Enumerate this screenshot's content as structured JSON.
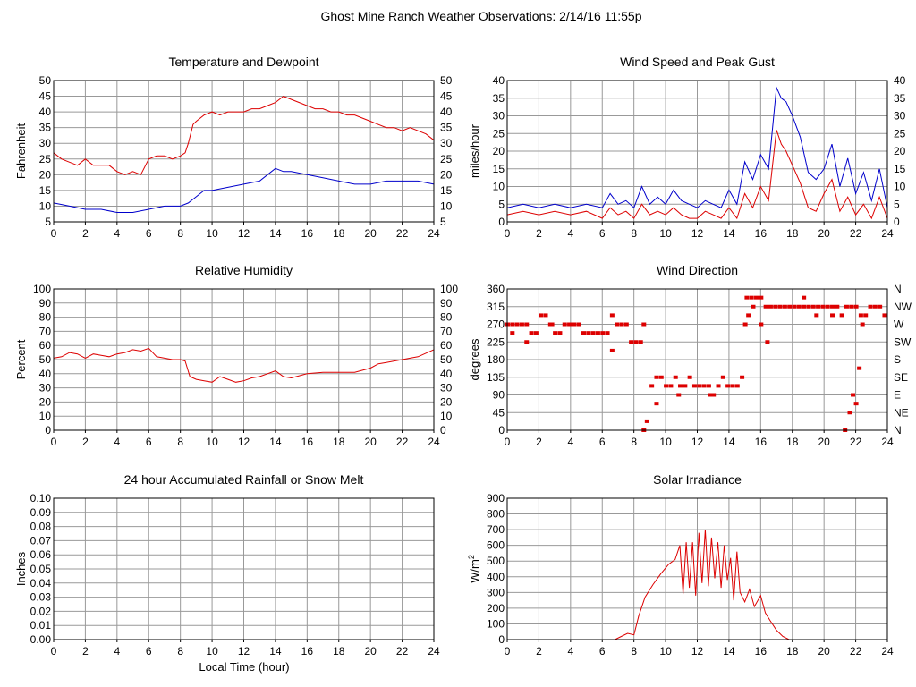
{
  "page": {
    "title": "Ghost Mine Ranch Weather Observations: 2/14/16 11:55p",
    "xlabel": "Local Time (hour)"
  },
  "colors": {
    "primary": "#dd0000",
    "secondary": "#0000cc",
    "grid": "#999999",
    "axis": "#000000"
  },
  "chart_data": [
    {
      "id": "temp",
      "type": "line",
      "title": "Temperature and Dewpoint",
      "ylabel": "Fahrenheit",
      "xlim": [
        0,
        24
      ],
      "ylim": [
        5,
        50
      ],
      "yticks": [
        5,
        10,
        15,
        20,
        25,
        30,
        35,
        40,
        45,
        50
      ],
      "xticks": [
        0,
        2,
        4,
        6,
        8,
        10,
        12,
        14,
        16,
        18,
        20,
        22,
        24
      ],
      "right_ticks": [
        "5",
        "10",
        "15",
        "20",
        "25",
        "30",
        "35",
        "40",
        "45",
        "50"
      ],
      "grid": true,
      "series": [
        {
          "color": "#dd0000",
          "x": [
            0,
            0.5,
            1,
            1.5,
            2,
            2.5,
            3,
            3.5,
            4,
            4.5,
            5,
            5.5,
            6,
            6.5,
            7,
            7.5,
            8,
            8.3,
            8.5,
            8.8,
            9,
            9.5,
            10,
            10.5,
            11,
            11.5,
            12,
            12.5,
            13,
            13.5,
            14,
            14.5,
            15,
            15.5,
            16,
            16.5,
            17,
            17.5,
            18,
            18.5,
            19,
            19.5,
            20,
            20.5,
            21,
            21.5,
            22,
            22.5,
            23,
            23.5,
            24
          ],
          "y": [
            27,
            25,
            24,
            23,
            25,
            23,
            23,
            23,
            21,
            20,
            21,
            20,
            25,
            26,
            26,
            25,
            26,
            27,
            30,
            36,
            37,
            39,
            40,
            39,
            40,
            40,
            40,
            41,
            41,
            42,
            43,
            45,
            44,
            43,
            42,
            41,
            41,
            40,
            40,
            39,
            39,
            38,
            37,
            36,
            35,
            35,
            34,
            35,
            34,
            33,
            31
          ]
        },
        {
          "color": "#0000cc",
          "x": [
            0,
            1,
            2,
            3,
            4,
            5,
            6,
            7,
            8,
            8.5,
            9,
            9.5,
            10,
            11,
            12,
            13,
            13.5,
            14,
            14.5,
            15,
            16,
            17,
            18,
            19,
            20,
            21,
            22,
            23,
            24
          ],
          "y": [
            11,
            10,
            9,
            9,
            8,
            8,
            9,
            10,
            10,
            11,
            13,
            15,
            15,
            16,
            17,
            18,
            20,
            22,
            21,
            21,
            20,
            19,
            18,
            17,
            17,
            18,
            18,
            18,
            17
          ]
        }
      ]
    },
    {
      "id": "wind",
      "type": "line",
      "title": "Wind Speed and Peak Gust",
      "ylabel": "miles/hour",
      "xlim": [
        0,
        24
      ],
      "ylim": [
        0,
        40
      ],
      "yticks": [
        0,
        5,
        10,
        15,
        20,
        25,
        30,
        35,
        40
      ],
      "xticks": [
        0,
        2,
        4,
        6,
        8,
        10,
        12,
        14,
        16,
        18,
        20,
        22,
        24
      ],
      "right_ticks": [
        "0",
        "5",
        "10",
        "15",
        "20",
        "25",
        "30",
        "35",
        "40"
      ],
      "grid": true,
      "series": [
        {
          "color": "#0000cc",
          "x": [
            0,
            1,
            2,
            3,
            4,
            5,
            6,
            6.5,
            7,
            7.5,
            8,
            8.5,
            9,
            9.5,
            10,
            10.5,
            11,
            11.5,
            12,
            12.5,
            13,
            13.5,
            14,
            14.5,
            15,
            15.5,
            16,
            16.5,
            17,
            17.3,
            17.6,
            18,
            18.5,
            19,
            19.5,
            20,
            20.5,
            21,
            21.5,
            22,
            22.5,
            23,
            23.5,
            24
          ],
          "y": [
            4,
            5,
            4,
            5,
            4,
            5,
            4,
            8,
            5,
            6,
            4,
            10,
            5,
            7,
            5,
            9,
            6,
            5,
            4,
            6,
            5,
            4,
            9,
            5,
            17,
            12,
            19,
            15,
            38,
            35,
            34,
            30,
            24,
            14,
            12,
            15,
            22,
            10,
            18,
            8,
            14,
            6,
            15,
            4
          ]
        },
        {
          "color": "#dd0000",
          "x": [
            0,
            1,
            2,
            3,
            4,
            5,
            6,
            6.5,
            7,
            7.5,
            8,
            8.5,
            9,
            9.5,
            10,
            10.5,
            11,
            11.5,
            12,
            12.5,
            13,
            13.5,
            14,
            14.5,
            15,
            15.5,
            16,
            16.5,
            17,
            17.3,
            17.6,
            18,
            18.5,
            19,
            19.5,
            20,
            20.5,
            21,
            21.5,
            22,
            22.5,
            23,
            23.5,
            24
          ],
          "y": [
            2,
            3,
            2,
            3,
            2,
            3,
            1,
            4,
            2,
            3,
            1,
            5,
            2,
            3,
            2,
            4,
            2,
            1,
            1,
            3,
            2,
            1,
            4,
            1,
            8,
            4,
            10,
            6,
            26,
            22,
            20,
            16,
            11,
            4,
            3,
            8,
            12,
            3,
            7,
            2,
            5,
            1,
            7,
            1
          ]
        }
      ]
    },
    {
      "id": "rh",
      "type": "line",
      "title": "Relative Humidity",
      "ylabel": "Percent",
      "xlim": [
        0,
        24
      ],
      "ylim": [
        0,
        100
      ],
      "yticks": [
        0,
        10,
        20,
        30,
        40,
        50,
        60,
        70,
        80,
        90,
        100
      ],
      "xticks": [
        0,
        2,
        4,
        6,
        8,
        10,
        12,
        14,
        16,
        18,
        20,
        22,
        24
      ],
      "right_ticks": [
        "0",
        "10",
        "20",
        "30",
        "40",
        "50",
        "60",
        "70",
        "80",
        "90",
        "100"
      ],
      "grid": true,
      "series": [
        {
          "color": "#dd0000",
          "x": [
            0,
            0.5,
            1,
            1.5,
            2,
            2.5,
            3,
            3.5,
            4,
            4.5,
            5,
            5.5,
            6,
            6.5,
            7,
            7.5,
            8,
            8.3,
            8.6,
            9,
            9.5,
            10,
            10.5,
            11,
            11.5,
            12,
            12.5,
            13,
            13.5,
            14,
            14.5,
            15,
            16,
            17,
            18,
            19,
            20,
            20.5,
            21,
            22,
            23,
            24
          ],
          "y": [
            51,
            52,
            55,
            54,
            51,
            54,
            53,
            52,
            54,
            55,
            57,
            56,
            58,
            52,
            51,
            50,
            50,
            49,
            38,
            36,
            35,
            34,
            38,
            36,
            34,
            35,
            37,
            38,
            40,
            42,
            38,
            37,
            40,
            41,
            41,
            41,
            44,
            47,
            48,
            50,
            52,
            57
          ]
        }
      ]
    },
    {
      "id": "dir",
      "type": "scatter",
      "title": "Wind Direction",
      "ylabel": "degrees",
      "xlim": [
        0,
        24
      ],
      "ylim": [
        0,
        360
      ],
      "yticks": [
        0,
        45,
        90,
        135,
        180,
        225,
        270,
        315,
        360
      ],
      "xticks": [
        0,
        2,
        4,
        6,
        8,
        10,
        12,
        14,
        16,
        18,
        20,
        22,
        24
      ],
      "right_ticks": [
        "N",
        "NE",
        "E",
        "SE",
        "S",
        "SW",
        "W",
        "NW",
        "N"
      ],
      "grid": true,
      "series": [
        {
          "color": "#dd0000",
          "x": [
            0,
            0.3,
            0.6,
            0.9,
            1.2,
            1.5,
            1.8,
            2.1,
            2.4,
            2.7,
            3,
            3.3,
            3.6,
            3.9,
            4.2,
            4.5,
            4.8,
            5.1,
            5.4,
            5.7,
            6,
            6.3,
            6.6,
            6.9,
            7.2,
            7.5,
            7.8,
            8.1,
            8.4,
            8.6,
            8.8,
            9.1,
            9.4,
            9.7,
            10,
            10.3,
            10.6,
            10.9,
            11.2,
            11.5,
            11.8,
            12.1,
            12.4,
            12.7,
            13,
            13.3,
            13.6,
            13.9,
            14.2,
            14.5,
            14.8,
            15.1,
            15.4,
            15.7,
            16,
            16.3,
            16.6,
            16.9,
            17.2,
            17.5,
            17.8,
            18.1,
            18.4,
            18.7,
            19,
            19.3,
            19.6,
            19.9,
            20.2,
            20.5,
            20.8,
            21.1,
            21.4,
            21.7,
            22,
            22.3,
            22.6,
            22.9,
            23.2,
            23.5,
            23.8
          ],
          "y": [
            270,
            270,
            270,
            270,
            270,
            248,
            248,
            293,
            293,
            270,
            248,
            248,
            270,
            270,
            270,
            270,
            248,
            248,
            248,
            248,
            248,
            248,
            293,
            270,
            270,
            270,
            225,
            225,
            225,
            0,
            23,
            113,
            135,
            135,
            113,
            113,
            135,
            113,
            113,
            135,
            113,
            113,
            113,
            113,
            90,
            113,
            135,
            113,
            113,
            113,
            135,
            338,
            338,
            338,
            338,
            315,
            315,
            315,
            315,
            315,
            315,
            315,
            315,
            315,
            315,
            315,
            315,
            315,
            315,
            315,
            315,
            293,
            315,
            315,
            315,
            293,
            293,
            315,
            315,
            315,
            293
          ]
        },
        {
          "color": "#dd0000",
          "x": [
            0.3,
            1.2,
            2.8,
            6.6,
            8.6,
            9.4,
            10.8,
            12.8,
            15,
            15.2,
            15.5,
            16,
            16.4,
            18.7,
            19.5,
            20.5,
            21.3,
            21.6,
            21.8,
            22,
            22.2,
            22.4
          ],
          "y": [
            248,
            225,
            270,
            203,
            270,
            68,
            90,
            90,
            270,
            293,
            315,
            270,
            225,
            338,
            293,
            293,
            0,
            45,
            90,
            68,
            158,
            270
          ]
        }
      ]
    },
    {
      "id": "rain",
      "type": "line",
      "title": "24 hour Accumulated Rainfall or Snow Melt",
      "ylabel": "Inches",
      "xlim": [
        0,
        24
      ],
      "ylim": [
        0,
        0.1
      ],
      "yticks": [
        0,
        0.01,
        0.02,
        0.03,
        0.04,
        0.05,
        0.06,
        0.07,
        0.08,
        0.09,
        0.1
      ],
      "ytick_labels": [
        "0.00",
        "0.01",
        "0.02",
        "0.03",
        "0.04",
        "0.05",
        "0.06",
        "0.07",
        "0.08",
        "0.09",
        "0.10"
      ],
      "xticks": [
        0,
        2,
        4,
        6,
        8,
        10,
        12,
        14,
        16,
        18,
        20,
        22,
        24
      ],
      "grid": true,
      "series": [
        {
          "color": "#dd0000",
          "x": [
            0,
            24
          ],
          "y": [
            0,
            0
          ]
        }
      ]
    },
    {
      "id": "solar",
      "type": "line",
      "title": "Solar Irradiance",
      "ylabel": "W/m",
      "ylabel_sup": "2",
      "xlim": [
        0,
        24
      ],
      "ylim": [
        0,
        900
      ],
      "yticks": [
        0,
        100,
        200,
        300,
        400,
        500,
        600,
        700,
        800,
        900
      ],
      "xticks": [
        0,
        2,
        4,
        6,
        8,
        10,
        12,
        14,
        16,
        18,
        20,
        22,
        24
      ],
      "grid": true,
      "series": [
        {
          "color": "#dd0000",
          "x": [
            0,
            6.8,
            7.2,
            7.6,
            8,
            8.3,
            8.7,
            9.2,
            9.7,
            10.2,
            10.6,
            10.9,
            11.1,
            11.3,
            11.5,
            11.7,
            11.9,
            12.1,
            12.3,
            12.5,
            12.7,
            12.9,
            13.1,
            13.3,
            13.5,
            13.7,
            13.9,
            14.1,
            14.3,
            14.5,
            14.7,
            15,
            15.3,
            15.6,
            16,
            16.3,
            16.6,
            17,
            17.4,
            17.8,
            24
          ],
          "y": [
            0,
            0,
            20,
            40,
            30,
            150,
            270,
            350,
            420,
            480,
            510,
            600,
            290,
            620,
            330,
            620,
            280,
            680,
            360,
            700,
            340,
            650,
            390,
            620,
            330,
            600,
            380,
            520,
            250,
            560,
            300,
            240,
            320,
            210,
            280,
            170,
            120,
            60,
            20,
            0,
            0
          ]
        }
      ]
    }
  ]
}
